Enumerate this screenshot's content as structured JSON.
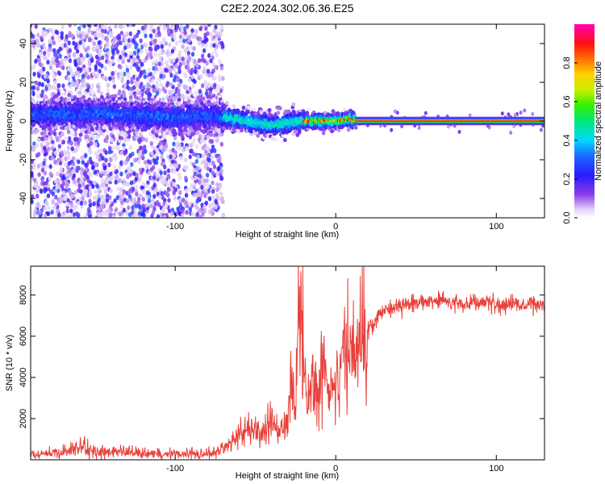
{
  "title": "C2E2.2024.302.06.36.E25",
  "chart_data": [
    {
      "type": "heatmap",
      "name": "spectrogram",
      "xlabel": "Height of straight line (km)",
      "ylabel": "Frequency (Hz)",
      "xlim": [
        -190,
        130
      ],
      "ylim": [
        -50,
        50
      ],
      "xticks": [
        -100,
        0,
        100
      ],
      "yticks": [
        -40,
        -20,
        0,
        20,
        40
      ],
      "colorbar": {
        "label": "Normalized spectral amplitude",
        "range": [
          0,
          1
        ],
        "ticks": [
          0.0,
          0.2,
          0.4,
          0.6,
          0.8
        ]
      },
      "ridge_center_hz": [
        {
          "x": -190,
          "y": 3
        },
        {
          "x": -150,
          "y": 4
        },
        {
          "x": -120,
          "y": 3
        },
        {
          "x": -100,
          "y": 2
        },
        {
          "x": -80,
          "y": 3
        },
        {
          "x": -70,
          "y": 2
        },
        {
          "x": -55,
          "y": 0
        },
        {
          "x": -40,
          "y": -2
        },
        {
          "x": -30,
          "y": -1
        },
        {
          "x": -20,
          "y": 0
        },
        {
          "x": 0,
          "y": 0
        },
        {
          "x": 10,
          "y": 1
        },
        {
          "x": 12,
          "y": 0
        },
        {
          "x": 130,
          "y": 0
        }
      ]
    },
    {
      "type": "line",
      "name": "snr",
      "xlabel": "Height of straight line (km)",
      "ylabel": "SNR (10 * v/v)",
      "xlim": [
        -190,
        130
      ],
      "ylim": [
        0,
        9400
      ],
      "xticks": [
        -100,
        0,
        100
      ],
      "yticks": [
        2000,
        4000,
        6000,
        8000
      ],
      "color": "#e8403a",
      "series": [
        {
          "name": "SNR",
          "x": [
            -190,
            -170,
            -160,
            -150,
            -130,
            -110,
            -95,
            -85,
            -75,
            -70,
            -65,
            -60,
            -55,
            -50,
            -45,
            -40,
            -35,
            -30,
            -28,
            -25,
            -22,
            -20,
            -18,
            -15,
            -10,
            -5,
            0,
            5,
            10,
            15,
            20,
            25,
            30,
            40,
            50,
            60,
            70,
            80,
            90,
            100,
            110,
            120,
            130
          ],
          "y": [
            250,
            350,
            600,
            400,
            350,
            300,
            300,
            300,
            350,
            500,
            800,
            1300,
            1500,
            1400,
            1400,
            1800,
            1200,
            2000,
            4500,
            2500,
            8800,
            4000,
            3000,
            3500,
            3800,
            3800,
            4000,
            5200,
            5300,
            5800,
            6300,
            6800,
            7300,
            7500,
            7600,
            7800,
            7700,
            7600,
            7650,
            7600,
            7550,
            7500,
            7600
          ]
        }
      ]
    }
  ]
}
